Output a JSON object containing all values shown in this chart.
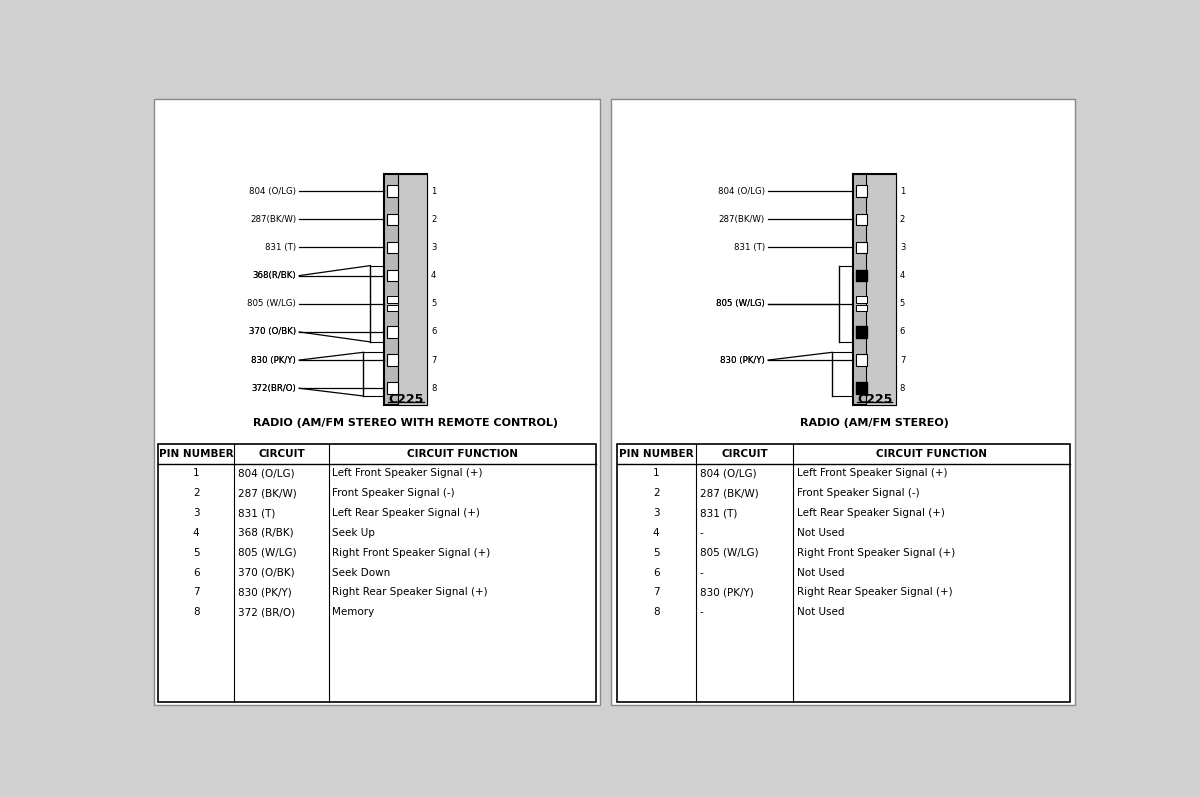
{
  "bg_color": "#d0d0d0",
  "left_diagram": {
    "title": "C225",
    "subtitle": "RADIO (AM/FM STEREO WITH REMOTE CONTROL)",
    "pins": [
      {
        "num": 1,
        "label": "804 (O/LG)",
        "type": "open"
      },
      {
        "num": 2,
        "label": "287(BK/W)",
        "type": "open"
      },
      {
        "num": 3,
        "label": "831 (T)",
        "type": "open"
      },
      {
        "num": 4,
        "label": "368(R/BK)",
        "type": "open"
      },
      {
        "num": 5,
        "label": "805 (W/LG)",
        "type": "special"
      },
      {
        "num": 6,
        "label": "370 (O/BK)",
        "type": "open"
      },
      {
        "num": 7,
        "label": "830 (PK/Y)",
        "type": "open"
      },
      {
        "num": 8,
        "label": "372(BR/O)",
        "type": "open"
      }
    ],
    "table": {
      "headers": [
        "PIN NUMBER",
        "CIRCUIT",
        "CIRCUIT FUNCTION"
      ],
      "rows": [
        [
          "1",
          "804 (O/LG)",
          "Left Front Speaker Signal (+)"
        ],
        [
          "2",
          "287 (BK/W)",
          "Front Speaker Signal (-)"
        ],
        [
          "3",
          "831 (T)",
          "Left Rear Speaker Signal (+)"
        ],
        [
          "4",
          "368 (R/BK)",
          "Seek Up"
        ],
        [
          "5",
          "805 (W/LG)",
          "Right Front Speaker Signal (+)"
        ],
        [
          "6",
          "370 (O/BK)",
          "Seek Down"
        ],
        [
          "7",
          "830 (PK/Y)",
          "Right Rear Speaker Signal (+)"
        ],
        [
          "8",
          "372 (BR/O)",
          "Memory"
        ]
      ]
    }
  },
  "right_diagram": {
    "title": "C225",
    "subtitle": "RADIO (AM/FM STEREO)",
    "pins": [
      {
        "num": 1,
        "label": "804 (O/LG)",
        "type": "open"
      },
      {
        "num": 2,
        "label": "287(BK/W)",
        "type": "open"
      },
      {
        "num": 3,
        "label": "831 (T)",
        "type": "open"
      },
      {
        "num": 4,
        "label": "-",
        "type": "filled"
      },
      {
        "num": 5,
        "label": "805 (W/LG)",
        "type": "special"
      },
      {
        "num": 6,
        "label": "-",
        "type": "filled"
      },
      {
        "num": 7,
        "label": "830 (PK/Y)",
        "type": "open"
      },
      {
        "num": 8,
        "label": "-",
        "type": "filled"
      }
    ],
    "table": {
      "headers": [
        "PIN NUMBER",
        "CIRCUIT",
        "CIRCUIT FUNCTION"
      ],
      "rows": [
        [
          "1",
          "804 (O/LG)",
          "Left Front Speaker Signal (+)"
        ],
        [
          "2",
          "287 (BK/W)",
          "Front Speaker Signal (-)"
        ],
        [
          "3",
          "831 (T)",
          "Left Rear Speaker Signal (+)"
        ],
        [
          "4",
          "-",
          "Not Used"
        ],
        [
          "5",
          "805 (W/LG)",
          "Right Front Speaker Signal (+)"
        ],
        [
          "6",
          "-",
          "Not Used"
        ],
        [
          "7",
          "830 (PK/Y)",
          "Right Rear Speaker Signal (+)"
        ],
        [
          "8",
          "-",
          "Not Used"
        ]
      ]
    }
  }
}
